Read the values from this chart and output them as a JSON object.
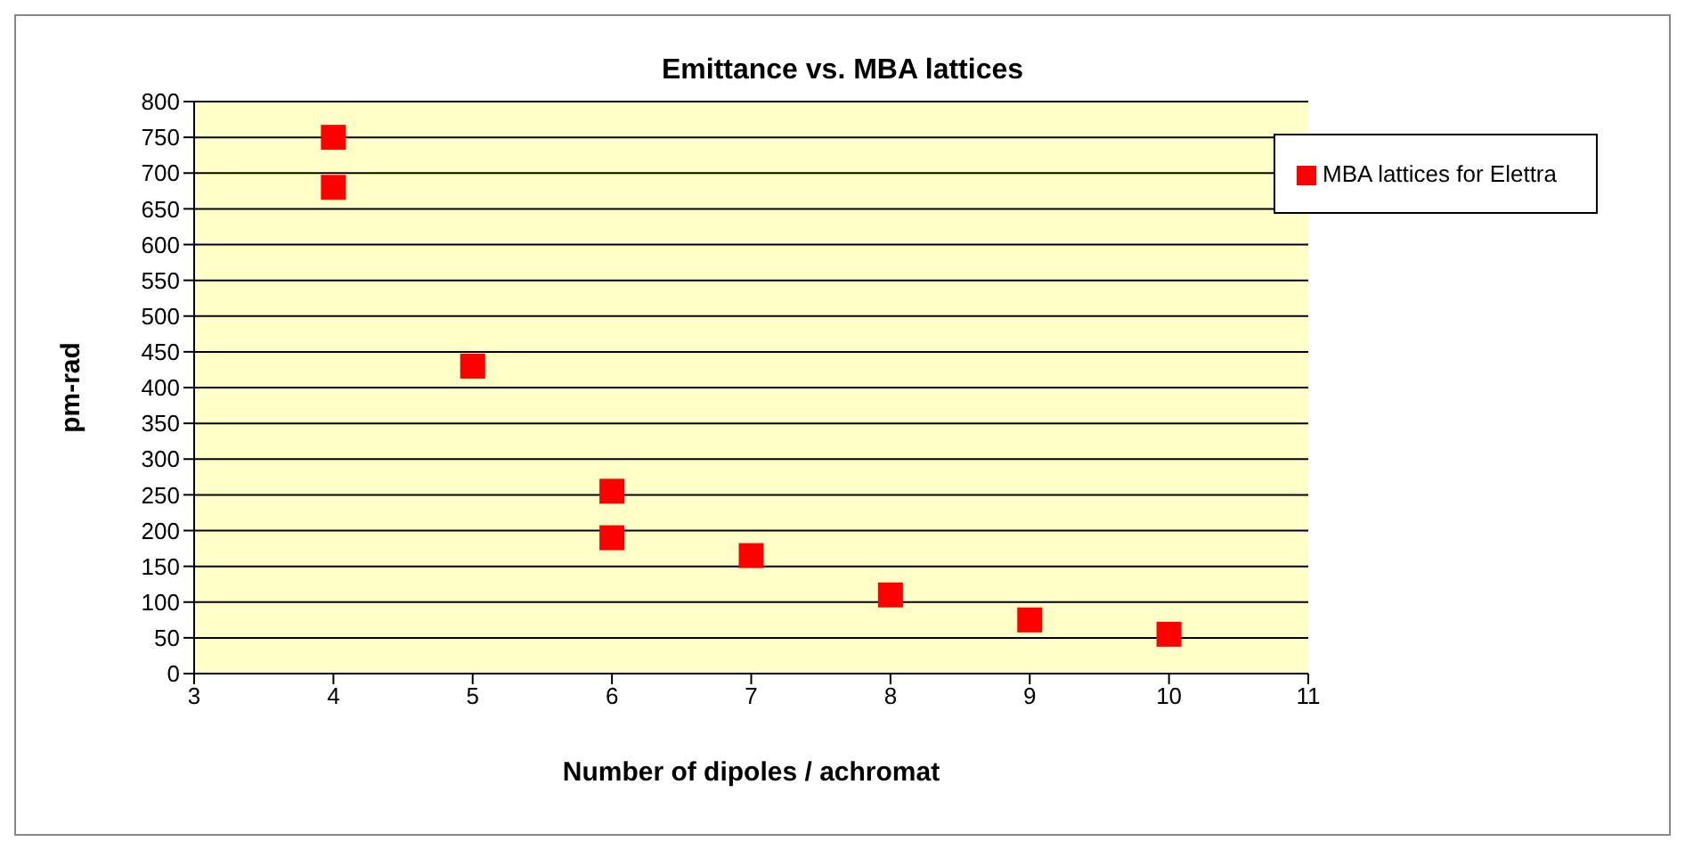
{
  "chart_data": {
    "type": "scatter",
    "title": "Emittance vs. MBA lattices",
    "xlabel": "Number of dipoles / achromat",
    "ylabel": "pm-rad",
    "x": [
      4,
      4,
      5,
      6,
      6,
      7,
      8,
      9,
      10
    ],
    "series": [
      {
        "name": "MBA  lattices for Elettra",
        "color": "#ff0000",
        "values": [
          750,
          680,
          430,
          255,
          190,
          165,
          110,
          75,
          55
        ]
      }
    ],
    "xlim": [
      3,
      11
    ],
    "xticks": [
      3,
      4,
      5,
      6,
      7,
      8,
      9,
      10,
      11
    ],
    "ylim": [
      0,
      800
    ],
    "yticks": [
      0,
      50,
      100,
      150,
      200,
      250,
      300,
      350,
      400,
      450,
      500,
      550,
      600,
      650,
      700,
      750,
      800
    ],
    "grid": "y",
    "legend": "top right",
    "marker": "square"
  }
}
